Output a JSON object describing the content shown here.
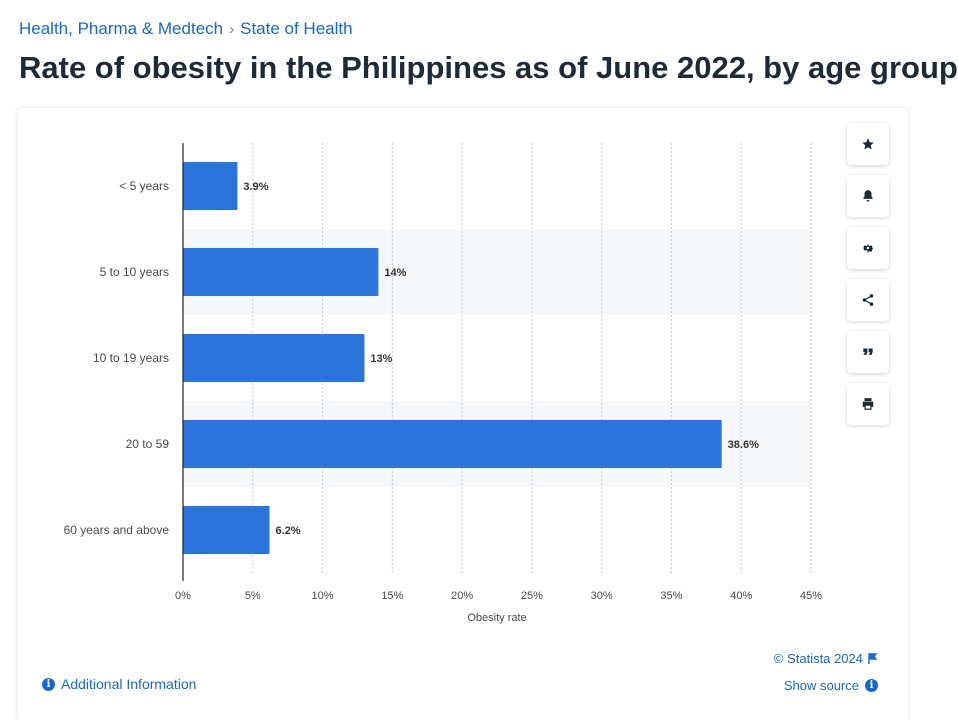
{
  "breadcrumb": {
    "items": [
      "Health, Pharma & Medtech",
      "State of Health"
    ],
    "separator": "›"
  },
  "page_title": "Rate of obesity in the Philippines as of June 2022, by age group",
  "colors": {
    "bar": "#2a74dc",
    "link": "#1b66c9",
    "band": "#f6f7f9",
    "grid": "#c9cdd3",
    "text": "#4a4a4a"
  },
  "toolbar": {
    "icons": [
      "star-icon",
      "bell-icon",
      "gear-icon",
      "share-icon",
      "quote-icon",
      "print-icon"
    ]
  },
  "footer": {
    "additional_info": "Additional Information",
    "copyright": "© Statista 2024",
    "show_source": "Show source"
  },
  "chart_data": {
    "type": "bar",
    "orientation": "horizontal",
    "categories": [
      "< 5 years",
      "5 to 10 years",
      "10 to 19 years",
      "20 to 59",
      "60 years and above"
    ],
    "values": [
      3.9,
      14,
      13,
      38.6,
      6.2
    ],
    "value_labels": [
      "3.9%",
      "14%",
      "13%",
      "38.6%",
      "6.2%"
    ],
    "xlabel": "Obesity rate",
    "xlim": [
      0,
      45
    ],
    "xticks": [
      0,
      5,
      10,
      15,
      20,
      25,
      30,
      35,
      40,
      45
    ],
    "xtick_labels": [
      "0%",
      "5%",
      "10%",
      "15%",
      "20%",
      "25%",
      "30%",
      "35%",
      "40%",
      "45%"
    ],
    "grid": true
  }
}
